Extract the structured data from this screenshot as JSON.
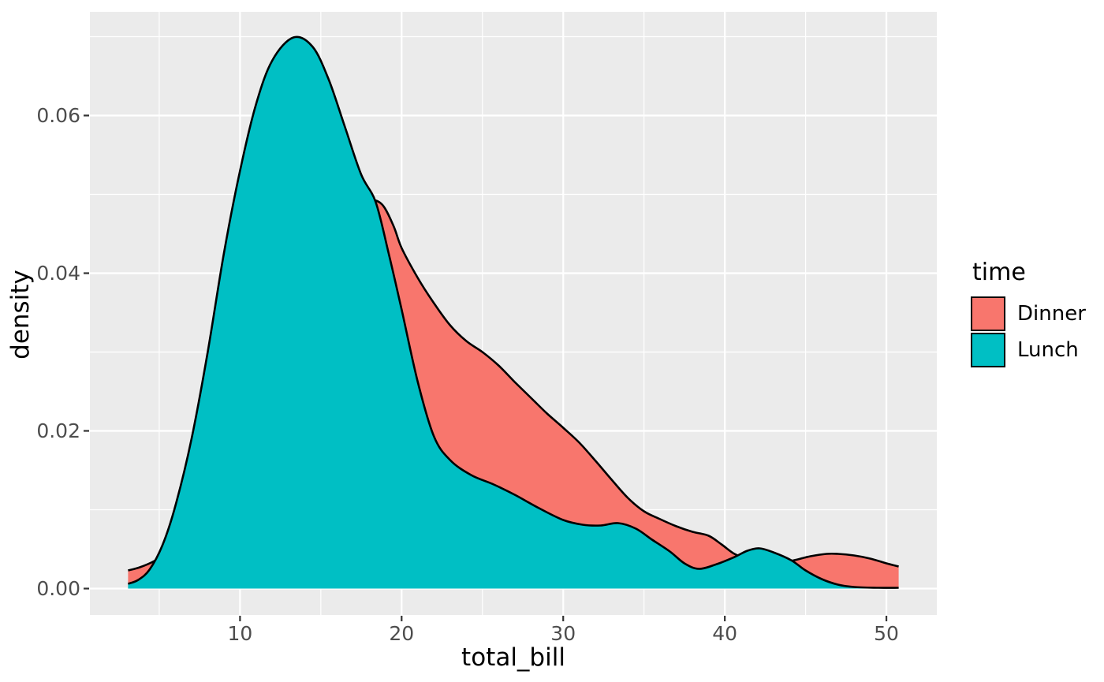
{
  "figure": {
    "background": "#FFFFFF",
    "panel_background": "#EBEBEB",
    "gridline_color": "#FFFFFF",
    "tick_mark_color": "#333333",
    "tick_label_color": "#4D4D4D",
    "curve_outline_color": "#000000"
  },
  "chart_data": {
    "type": "area",
    "subtype": "kernel-density",
    "title": "",
    "xlabel": "total_bill",
    "ylabel": "density",
    "xlim": [
      0.71,
      53.12
    ],
    "ylim": [
      -0.00335,
      0.07315
    ],
    "grid": "on",
    "x_ticks": [
      10,
      20,
      30,
      40,
      50
    ],
    "x_tick_labels": [
      "10",
      "20",
      "30",
      "40",
      "50"
    ],
    "x_minor_ticks": [
      5,
      15,
      25,
      35,
      45
    ],
    "y_ticks": [
      0,
      0.02,
      0.04,
      0.06
    ],
    "y_tick_labels": [
      "0.00",
      "0.02",
      "0.04",
      "0.06"
    ],
    "y_minor_ticks": [
      0.01,
      0.03,
      0.05,
      0.07
    ],
    "legend": {
      "title": "time",
      "position": "right",
      "items": [
        {
          "label": "Dinner",
          "color": "#F8766D"
        },
        {
          "label": "Lunch",
          "color": "#00BFC4"
        }
      ]
    },
    "series": [
      {
        "name": "Dinner",
        "fill": "#F8766D",
        "points": [
          [
            3.07,
            0.0023
          ],
          [
            3.8,
            0.0027
          ],
          [
            4.7,
            0.0035
          ],
          [
            5.8,
            0.005
          ],
          [
            7,
            0.0072
          ],
          [
            8.5,
            0.0105
          ],
          [
            10,
            0.0155
          ],
          [
            11.5,
            0.0225
          ],
          [
            13,
            0.031
          ],
          [
            14.5,
            0.039
          ],
          [
            16,
            0.045
          ],
          [
            17.2,
            0.0484
          ],
          [
            18,
            0.0493
          ],
          [
            18.8,
            0.0487
          ],
          [
            19.5,
            0.046
          ],
          [
            20,
            0.0432
          ],
          [
            21,
            0.0394
          ],
          [
            22,
            0.0362
          ],
          [
            23,
            0.0334
          ],
          [
            24,
            0.0314
          ],
          [
            25,
            0.03
          ],
          [
            26,
            0.0283
          ],
          [
            27,
            0.0262
          ],
          [
            28,
            0.0242
          ],
          [
            29,
            0.0222
          ],
          [
            30,
            0.0204
          ],
          [
            31,
            0.0185
          ],
          [
            32,
            0.0162
          ],
          [
            33,
            0.0138
          ],
          [
            34,
            0.0115
          ],
          [
            35,
            0.0098
          ],
          [
            36,
            0.0088
          ],
          [
            37,
            0.0079
          ],
          [
            38,
            0.0072
          ],
          [
            39,
            0.0067
          ],
          [
            39.8,
            0.0056
          ],
          [
            40.6,
            0.0044
          ],
          [
            41.5,
            0.0037
          ],
          [
            42.5,
            0.0034
          ],
          [
            43.5,
            0.0033
          ],
          [
            44.3,
            0.0036
          ],
          [
            45.3,
            0.0041
          ],
          [
            46.3,
            0.0044
          ],
          [
            47,
            0.0044
          ],
          [
            48,
            0.0042
          ],
          [
            49,
            0.0038
          ],
          [
            50,
            0.0032
          ],
          [
            50.76,
            0.0028
          ]
        ]
      },
      {
        "name": "Lunch",
        "fill": "#00BFC4",
        "points": [
          [
            3.07,
            0.0006
          ],
          [
            3.7,
            0.0011
          ],
          [
            4.4,
            0.0024
          ],
          [
            5.2,
            0.0055
          ],
          [
            6,
            0.0105
          ],
          [
            7,
            0.019
          ],
          [
            8,
            0.03
          ],
          [
            9,
            0.0425
          ],
          [
            10,
            0.053
          ],
          [
            11,
            0.0615
          ],
          [
            12,
            0.067
          ],
          [
            13.3,
            0.0699
          ],
          [
            14.5,
            0.0687
          ],
          [
            15.5,
            0.0645
          ],
          [
            16.5,
            0.0585
          ],
          [
            17.5,
            0.0525
          ],
          [
            18.4,
            0.049
          ],
          [
            19.2,
            0.0425
          ],
          [
            20,
            0.0354
          ],
          [
            21,
            0.0262
          ],
          [
            22,
            0.0193
          ],
          [
            23,
            0.0163
          ],
          [
            24.3,
            0.0144
          ],
          [
            25.7,
            0.0132
          ],
          [
            27,
            0.0119
          ],
          [
            28.5,
            0.0102
          ],
          [
            30,
            0.0087
          ],
          [
            31.2,
            0.0081
          ],
          [
            32.3,
            0.008
          ],
          [
            33.4,
            0.0083
          ],
          [
            34.5,
            0.0076
          ],
          [
            35.5,
            0.0062
          ],
          [
            36.6,
            0.0047
          ],
          [
            37.5,
            0.0032
          ],
          [
            38.4,
            0.0025
          ],
          [
            39.5,
            0.0031
          ],
          [
            40.6,
            0.004
          ],
          [
            41.4,
            0.0048
          ],
          [
            42.15,
            0.0051
          ],
          [
            43,
            0.0046
          ],
          [
            44.1,
            0.0036
          ],
          [
            45,
            0.0023
          ],
          [
            46,
            0.0012
          ],
          [
            47,
            0.0005
          ],
          [
            48,
            0.0002
          ],
          [
            49.5,
            0.0001
          ],
          [
            50.76,
            0.0001
          ]
        ]
      }
    ]
  }
}
